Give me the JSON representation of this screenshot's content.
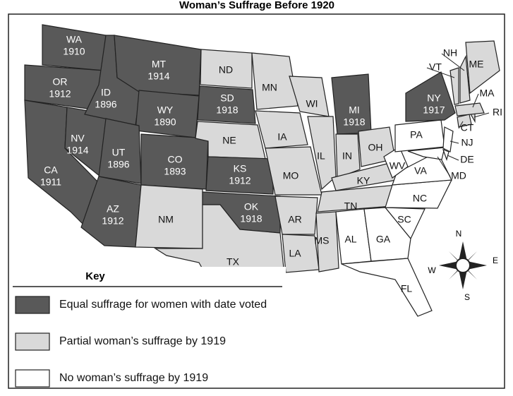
{
  "title": "Woman’s Suffrage Before 1920",
  "states": [
    {
      "abbr": "WA",
      "year": 1910,
      "color": "#595959"
    },
    {
      "abbr": "OR",
      "year": 1912,
      "color": "#595959"
    },
    {
      "abbr": "CA",
      "year": 1911,
      "color": "#595959"
    },
    {
      "abbr": "NV",
      "year": 1914,
      "color": "#595959"
    },
    {
      "abbr": "ID",
      "year": 1896,
      "color": "#595959"
    },
    {
      "abbr": "MT",
      "year": 1914,
      "color": "#595959"
    },
    {
      "abbr": "WY",
      "year": 1890,
      "color": "#595959"
    },
    {
      "abbr": "UT",
      "year": 1896,
      "color": "#595959"
    },
    {
      "abbr": "CO",
      "year": 1893,
      "color": "#595959"
    },
    {
      "abbr": "AZ",
      "year": 1912,
      "color": "#595959"
    },
    {
      "abbr": "NM",
      "color": "#d9d9d9"
    },
    {
      "abbr": "ND",
      "color": "#d9d9d9"
    },
    {
      "abbr": "SD",
      "year": 1918,
      "color": "#595959"
    },
    {
      "abbr": "NE",
      "color": "#d9d9d9"
    },
    {
      "abbr": "KS",
      "year": 1912,
      "color": "#595959"
    },
    {
      "abbr": "OK",
      "year": 1918,
      "color": "#595959"
    },
    {
      "abbr": "TX",
      "color": "#d9d9d9"
    },
    {
      "abbr": "MN",
      "color": "#d9d9d9"
    },
    {
      "abbr": "IA",
      "color": "#d9d9d9"
    },
    {
      "abbr": "MO",
      "color": "#d9d9d9"
    },
    {
      "abbr": "AR",
      "color": "#d9d9d9"
    },
    {
      "abbr": "LA",
      "color": "#d9d9d9"
    },
    {
      "abbr": "WI",
      "color": "#d9d9d9"
    },
    {
      "abbr": "IL",
      "color": "#d9d9d9"
    },
    {
      "abbr": "MI",
      "year": 1918,
      "color": "#595959"
    },
    {
      "abbr": "IN",
      "color": "#d9d9d9"
    },
    {
      "abbr": "OH",
      "color": "#d9d9d9"
    },
    {
      "abbr": "KY",
      "color": "#d9d9d9"
    },
    {
      "abbr": "TN",
      "color": "#d9d9d9"
    },
    {
      "abbr": "MS",
      "color": "#d9d9d9"
    },
    {
      "abbr": "AL",
      "color": "#ffffff"
    },
    {
      "abbr": "GA",
      "color": "#ffffff"
    },
    {
      "abbr": "FL",
      "color": "#ffffff"
    },
    {
      "abbr": "SC",
      "color": "#ffffff"
    },
    {
      "abbr": "NC",
      "color": "#ffffff"
    },
    {
      "abbr": "VA",
      "color": "#ffffff"
    },
    {
      "abbr": "WV",
      "color": "#ffffff"
    },
    {
      "abbr": "PA",
      "color": "#ffffff"
    },
    {
      "abbr": "NY",
      "year": 1917,
      "color": "#595959"
    },
    {
      "abbr": "MD",
      "color": "#ffffff"
    },
    {
      "abbr": "NJ",
      "color": "#ffffff"
    },
    {
      "abbr": "DE",
      "color": "#ffffff"
    },
    {
      "abbr": "CT",
      "color": "#d9d9d9"
    },
    {
      "abbr": "RI",
      "color": "#d9d9d9"
    },
    {
      "abbr": "MA",
      "color": "#d9d9d9"
    },
    {
      "abbr": "VT",
      "color": "#d9d9d9"
    },
    {
      "abbr": "NH",
      "color": "#d9d9d9"
    },
    {
      "abbr": "ME",
      "color": "#d9d9d9"
    }
  ],
  "key": {
    "title": "Key",
    "items": [
      {
        "label": "Equal suffrage for women with date voted",
        "color": "#595959"
      },
      {
        "label": "Partial woman’s suffrage by 1919",
        "color": "#d9d9d9"
      },
      {
        "label": "No woman’s suffrage by 1919",
        "color": "#ffffff"
      }
    ]
  },
  "compass": {
    "north": "N",
    "east": "E",
    "south": "S",
    "west": "W"
  }
}
